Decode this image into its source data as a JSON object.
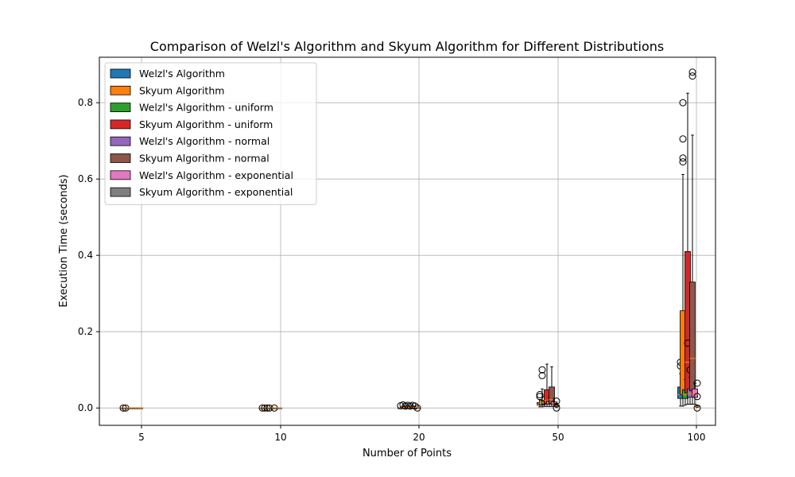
{
  "chart_data": {
    "type": "box",
    "title": "Comparison of Welzl's Algorithm and Skyum Algorithm for Different Distributions",
    "xlabel": "Number of Points",
    "ylabel": "Execution Time (seconds)",
    "ylim": [
      -0.04,
      0.92
    ],
    "yticks": [
      0.0,
      0.2,
      0.4,
      0.6,
      0.8
    ],
    "ytick_labels": [
      "0.0",
      "0.2",
      "0.4",
      "0.6",
      "0.8"
    ],
    "grid": true,
    "legend_position": "top-left",
    "categories": [
      "5",
      "10",
      "20",
      "50",
      "100"
    ],
    "x_axis_note": "box groups centered near each tick; median lines drawn in orange",
    "series": [
      {
        "name": "Welzl's Algorithm",
        "color": "#1f77b4",
        "boxes": [
          {
            "x_offset": -0.06,
            "whislo": 0.0,
            "q1": 0.0,
            "med": 0.0,
            "q3": 0.0,
            "whishi": 0.0,
            "fliers": [
              0.0
            ]
          },
          {
            "x_offset": -0.06,
            "whislo": 0.0,
            "q1": 0.0,
            "med": 0.0,
            "q3": 0.0,
            "whishi": 0.0,
            "fliers": [
              0.0
            ]
          },
          {
            "x_offset": -0.06,
            "whislo": 0.0,
            "q1": 0.0,
            "med": 0.0,
            "q3": 0.0,
            "whishi": 0.0,
            "fliers": [
              0.006
            ]
          },
          {
            "x_offset": -0.06,
            "whislo": 0.003,
            "q1": 0.008,
            "med": 0.01,
            "q3": 0.014,
            "whishi": 0.022,
            "fliers": [
              0.03,
              0.035
            ]
          },
          {
            "x_offset": -0.06,
            "whislo": 0.005,
            "q1": 0.025,
            "med": 0.035,
            "q3": 0.055,
            "whishi": 0.09,
            "fliers": [
              0.11,
              0.12
            ]
          }
        ]
      },
      {
        "name": "Skyum Algorithm",
        "color": "#ff7f0e",
        "boxes": [
          {
            "x_offset": -0.04,
            "whislo": 0.0,
            "q1": 0.0,
            "med": 0.0,
            "q3": 0.0,
            "whishi": 0.0,
            "fliers": [
              0.0
            ]
          },
          {
            "x_offset": -0.04,
            "whislo": 0.0,
            "q1": 0.0,
            "med": 0.0,
            "q3": 0.0,
            "whishi": 0.0,
            "fliers": [
              0.0
            ]
          },
          {
            "x_offset": -0.04,
            "whislo": 0.0,
            "q1": 0.001,
            "med": 0.002,
            "q3": 0.003,
            "whishi": 0.005,
            "fliers": [
              0.008
            ]
          },
          {
            "x_offset": -0.04,
            "whislo": 0.003,
            "q1": 0.008,
            "med": 0.012,
            "q3": 0.02,
            "whishi": 0.05,
            "fliers": [
              0.085,
              0.1
            ]
          },
          {
            "x_offset": -0.04,
            "whislo": 0.005,
            "q1": 0.035,
            "med": 0.1,
            "q3": 0.255,
            "whishi": 0.612,
            "fliers": [
              0.645,
              0.655,
              0.705,
              0.8
            ]
          }
        ]
      },
      {
        "name": "Welzl's Algorithm - uniform",
        "color": "#2ca02c",
        "boxes": [
          {
            "x_offset": -0.02,
            "whislo": 0.0,
            "q1": 0.0,
            "med": 0.0,
            "q3": 0.0,
            "whishi": 0.0,
            "fliers": []
          },
          {
            "x_offset": -0.02,
            "whislo": 0.0,
            "q1": 0.0,
            "med": 0.0,
            "q3": 0.0,
            "whishi": 0.0,
            "fliers": [
              0.0
            ]
          },
          {
            "x_offset": -0.02,
            "whislo": 0.0,
            "q1": 0.0,
            "med": 0.001,
            "q3": 0.001,
            "whishi": 0.003,
            "fliers": [
              0.005
            ]
          },
          {
            "x_offset": -0.02,
            "whislo": 0.004,
            "q1": 0.01,
            "med": 0.014,
            "q3": 0.019,
            "whishi": 0.03,
            "fliers": []
          },
          {
            "x_offset": -0.02,
            "whislo": 0.008,
            "q1": 0.025,
            "med": 0.035,
            "q3": 0.048,
            "whishi": 0.075,
            "fliers": []
          }
        ]
      },
      {
        "name": "Skyum Algorithm - uniform",
        "color": "#d62728",
        "boxes": [
          {
            "x_offset": 0.0,
            "whislo": 0.0,
            "q1": 0.0,
            "med": 0.0,
            "q3": 0.0,
            "whishi": 0.0,
            "fliers": []
          },
          {
            "x_offset": 0.0,
            "whislo": 0.0,
            "q1": 0.0,
            "med": 0.0,
            "q3": 0.0,
            "whishi": 0.0,
            "fliers": [
              0.0
            ]
          },
          {
            "x_offset": 0.0,
            "whislo": 0.0,
            "q1": 0.001,
            "med": 0.002,
            "q3": 0.003,
            "whishi": 0.005,
            "fliers": [
              0.007
            ]
          },
          {
            "x_offset": 0.0,
            "whislo": 0.004,
            "q1": 0.012,
            "med": 0.02,
            "q3": 0.048,
            "whishi": 0.115,
            "fliers": []
          },
          {
            "x_offset": 0.0,
            "whislo": 0.01,
            "q1": 0.04,
            "med": 0.12,
            "q3": 0.41,
            "whishi": 0.825,
            "fliers": [
              0.17
            ]
          }
        ]
      },
      {
        "name": "Welzl's Algorithm - normal",
        "color": "#9467bd",
        "boxes": [
          {
            "x_offset": 0.02,
            "whislo": 0.0,
            "q1": 0.0,
            "med": 0.0,
            "q3": 0.0,
            "whishi": 0.0,
            "fliers": []
          },
          {
            "x_offset": 0.02,
            "whislo": 0.0,
            "q1": 0.0,
            "med": 0.0,
            "q3": 0.0,
            "whishi": 0.0,
            "fliers": []
          },
          {
            "x_offset": 0.02,
            "whislo": 0.0,
            "q1": 0.0,
            "med": 0.001,
            "q3": 0.001,
            "whishi": 0.003,
            "fliers": [
              0.005
            ]
          },
          {
            "x_offset": 0.02,
            "whislo": 0.004,
            "q1": 0.01,
            "med": 0.013,
            "q3": 0.018,
            "whishi": 0.028,
            "fliers": []
          },
          {
            "x_offset": 0.02,
            "whislo": 0.01,
            "q1": 0.028,
            "med": 0.038,
            "q3": 0.05,
            "whishi": 0.08,
            "fliers": [
              0.1
            ]
          }
        ]
      },
      {
        "name": "Skyum Algorithm - normal",
        "color": "#8c564b",
        "boxes": [
          {
            "x_offset": 0.04,
            "whislo": 0.0,
            "q1": 0.0,
            "med": 0.0,
            "q3": 0.0,
            "whishi": 0.0,
            "fliers": []
          },
          {
            "x_offset": 0.04,
            "whislo": 0.0,
            "q1": 0.0,
            "med": 0.0,
            "q3": 0.0,
            "whishi": 0.0,
            "fliers": [
              0.0
            ]
          },
          {
            "x_offset": 0.04,
            "whislo": 0.0,
            "q1": 0.001,
            "med": 0.002,
            "q3": 0.003,
            "whishi": 0.005,
            "fliers": [
              0.007
            ]
          },
          {
            "x_offset": 0.04,
            "whislo": 0.004,
            "q1": 0.012,
            "med": 0.022,
            "q3": 0.055,
            "whishi": 0.108,
            "fliers": []
          },
          {
            "x_offset": 0.04,
            "whislo": 0.01,
            "q1": 0.045,
            "med": 0.13,
            "q3": 0.33,
            "whishi": 0.715,
            "fliers": [
              0.87,
              0.88
            ]
          }
        ]
      },
      {
        "name": "Welzl's Algorithm - exponential",
        "color": "#e377c2",
        "boxes": [
          {
            "x_offset": 0.06,
            "whislo": 0.0,
            "q1": 0.0,
            "med": 0.0,
            "q3": 0.0,
            "whishi": 0.0,
            "fliers": []
          },
          {
            "x_offset": 0.06,
            "whislo": 0.0,
            "q1": 0.0,
            "med": 0.0,
            "q3": 0.0,
            "whishi": 0.0,
            "fliers": []
          },
          {
            "x_offset": 0.06,
            "whislo": 0.0,
            "q1": 0.0,
            "med": 0.001,
            "q3": 0.001,
            "whishi": 0.003,
            "fliers": [
              0.005
            ]
          },
          {
            "x_offset": 0.06,
            "whislo": 0.004,
            "q1": 0.009,
            "med": 0.012,
            "q3": 0.016,
            "whishi": 0.025,
            "fliers": []
          },
          {
            "x_offset": 0.06,
            "whislo": 0.01,
            "q1": 0.028,
            "med": 0.035,
            "q3": 0.05,
            "whishi": 0.065,
            "fliers": []
          }
        ]
      },
      {
        "name": "Skyum Algorithm - exponential",
        "color": "#7f7f7f",
        "boxes": [
          {
            "x_offset": 0.08,
            "whislo": 0.0,
            "q1": 0.0,
            "med": 0.0,
            "q3": 0.0,
            "whishi": 0.0,
            "fliers": []
          },
          {
            "x_offset": 0.08,
            "whislo": 0.0,
            "q1": 0.0,
            "med": 0.0,
            "q3": 0.0,
            "whishi": 0.0,
            "fliers": []
          },
          {
            "x_offset": 0.08,
            "whislo": 0.0,
            "q1": 0.0,
            "med": 0.001,
            "q3": 0.001,
            "whishi": 0.002,
            "fliers": [
              0.0
            ]
          },
          {
            "x_offset": 0.08,
            "whislo": 0.002,
            "q1": 0.004,
            "med": 0.006,
            "q3": 0.008,
            "whishi": 0.012,
            "fliers": [
              0.018,
              0.0
            ]
          },
          {
            "x_offset": 0.08,
            "whislo": 0.002,
            "q1": 0.003,
            "med": 0.004,
            "q3": 0.005,
            "whishi": 0.006,
            "fliers": [
              0.03,
              0.065,
              0.0
            ]
          }
        ]
      }
    ]
  }
}
